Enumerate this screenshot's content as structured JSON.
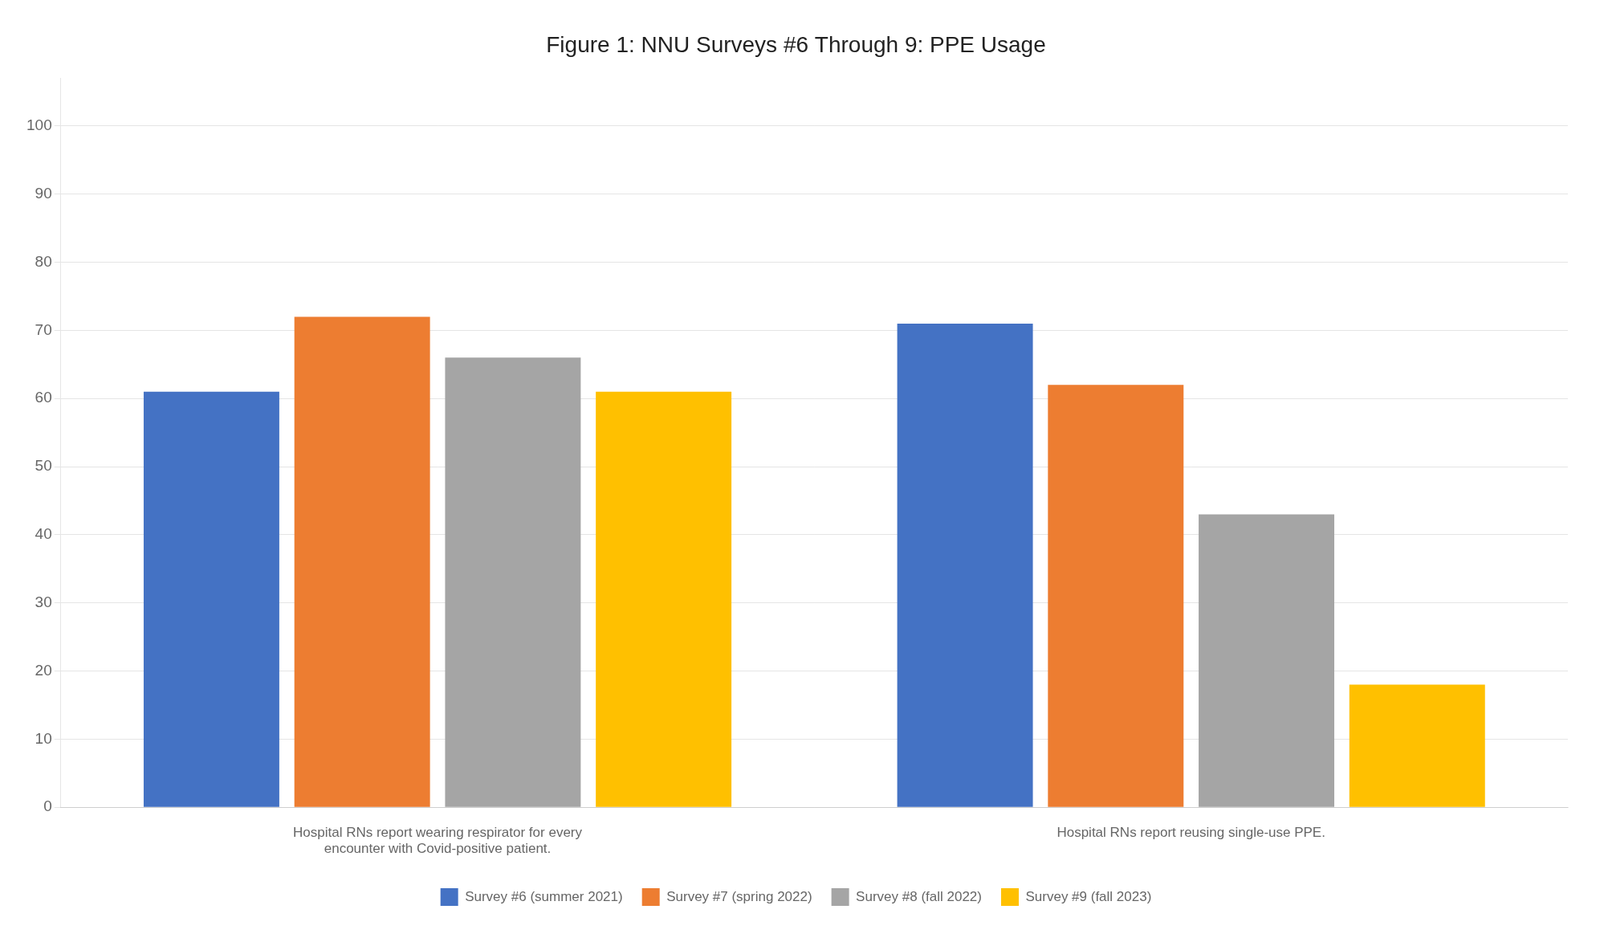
{
  "chart_data": {
    "type": "bar",
    "title": "Figure 1: NNU Surveys #6 Through 9: PPE Usage",
    "categories": [
      "Hospital RNs report wearing respirator for every\nencounter with Covid-positive patient.",
      "Hospital RNs report reusing single-use PPE."
    ],
    "series": [
      {
        "name": "Survey #6 (summer 2021)",
        "color": "#4472C4",
        "values": [
          61,
          71
        ]
      },
      {
        "name": "Survey #7 (spring 2022)",
        "color": "#ED7D31",
        "values": [
          72,
          62
        ]
      },
      {
        "name": "Survey #8 (fall 2022)",
        "color": "#A5A5A5",
        "values": [
          66,
          43
        ]
      },
      {
        "name": "Survey #9 (fall 2023)",
        "color": "#FFC000",
        "values": [
          61,
          18
        ]
      }
    ],
    "ylim": [
      0,
      107
    ],
    "yticks": [
      0,
      10,
      20,
      30,
      40,
      50,
      60,
      70,
      80,
      90,
      100
    ],
    "grid": true,
    "legend": "bottom"
  }
}
